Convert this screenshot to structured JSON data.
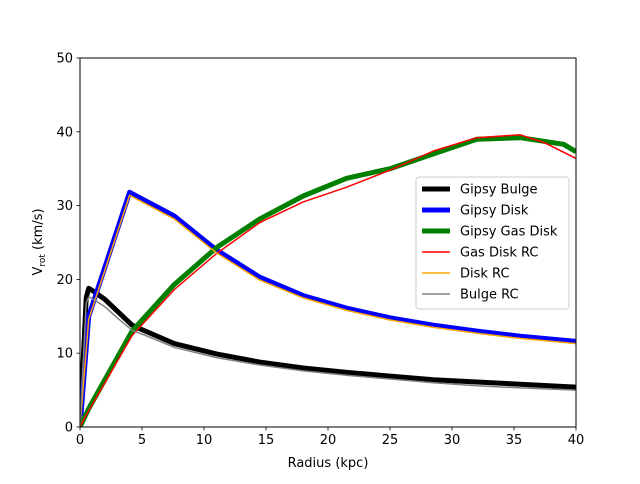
{
  "chart_data": {
    "type": "line",
    "title": "",
    "xlabel": "Radius (kpc)",
    "ylabel_main": "V",
    "ylabel_sub": "rot",
    "ylabel_tail": " (km/s)",
    "xlim": [
      0,
      40
    ],
    "ylim": [
      0,
      50
    ],
    "x_ticks": [
      0,
      5,
      10,
      15,
      20,
      25,
      30,
      35,
      40
    ],
    "y_ticks": [
      0,
      10,
      20,
      30,
      40,
      50
    ],
    "grid": false,
    "legend_position": "center-right",
    "series": [
      {
        "name": "Gipsy Bulge",
        "color": "#000000",
        "style": "thick",
        "x": [
          0,
          0.5,
          0.7,
          1.0,
          2.0,
          3.0,
          4.2,
          5.0,
          7.6,
          11.0,
          14.5,
          18.0,
          21.5,
          25.0,
          28.5,
          32.0,
          35.5,
          40.0
        ],
        "y": [
          0,
          17.5,
          18.8,
          18.5,
          17.3,
          15.7,
          13.8,
          13.2,
          11.3,
          9.9,
          8.8,
          8.0,
          7.4,
          6.9,
          6.4,
          6.1,
          5.8,
          5.4
        ]
      },
      {
        "name": "Gipsy Disk",
        "color": "#0000ff",
        "style": "thick",
        "x": [
          0,
          0.7,
          4.0,
          7.6,
          11.0,
          14.5,
          18.0,
          21.5,
          25.0,
          28.5,
          32.0,
          35.5,
          40.0
        ],
        "y": [
          0,
          15.0,
          31.8,
          28.6,
          24.0,
          20.3,
          17.8,
          16.1,
          14.8,
          13.8,
          13.0,
          12.3,
          11.6
        ]
      },
      {
        "name": "Gipsy Gas Disk",
        "color": "#008000",
        "style": "thick",
        "x": [
          0,
          0.7,
          4.2,
          7.6,
          11.0,
          14.5,
          18.0,
          21.5,
          25.0,
          28.5,
          32.0,
          35.5,
          39.0,
          40.0
        ],
        "y": [
          0,
          2.5,
          13.0,
          19.3,
          24.3,
          28.2,
          31.3,
          33.7,
          35.0,
          37.0,
          39.0,
          39.2,
          38.3,
          37.3
        ]
      },
      {
        "name": "Gas Disk RC",
        "color": "#ff0000",
        "style": "thin",
        "x": [
          0,
          0.7,
          4.2,
          7.6,
          11.0,
          14.5,
          18.0,
          21.5,
          25.0,
          28.5,
          32.0,
          35.5,
          37.5,
          40.0
        ],
        "y": [
          0,
          2.2,
          12.4,
          18.6,
          23.5,
          27.7,
          30.5,
          32.5,
          34.8,
          37.4,
          39.2,
          39.6,
          38.5,
          36.4
        ]
      },
      {
        "name": "Disk RC",
        "color": "#ffa500",
        "style": "thin",
        "x": [
          0,
          0.7,
          4.0,
          7.6,
          11.0,
          14.5,
          18.0,
          21.5,
          25.0,
          28.5,
          32.0,
          35.5,
          40.0
        ],
        "y": [
          0,
          14.6,
          31.4,
          28.2,
          23.6,
          19.9,
          17.5,
          15.8,
          14.5,
          13.5,
          12.7,
          12.0,
          11.3
        ]
      },
      {
        "name": "Bulge RC",
        "color": "#808080",
        "style": "thin",
        "x": [
          0,
          0.5,
          0.7,
          1.0,
          2.0,
          3.0,
          4.2,
          5.0,
          7.6,
          11.0,
          14.5,
          18.0,
          21.5,
          25.0,
          28.5,
          32.0,
          35.5,
          40.0
        ],
        "y": [
          0,
          16.8,
          17.6,
          17.4,
          16.3,
          14.8,
          13.1,
          12.6,
          10.8,
          9.4,
          8.4,
          7.6,
          7.0,
          6.5,
          6.0,
          5.6,
          5.3,
          5.0
        ]
      }
    ]
  }
}
